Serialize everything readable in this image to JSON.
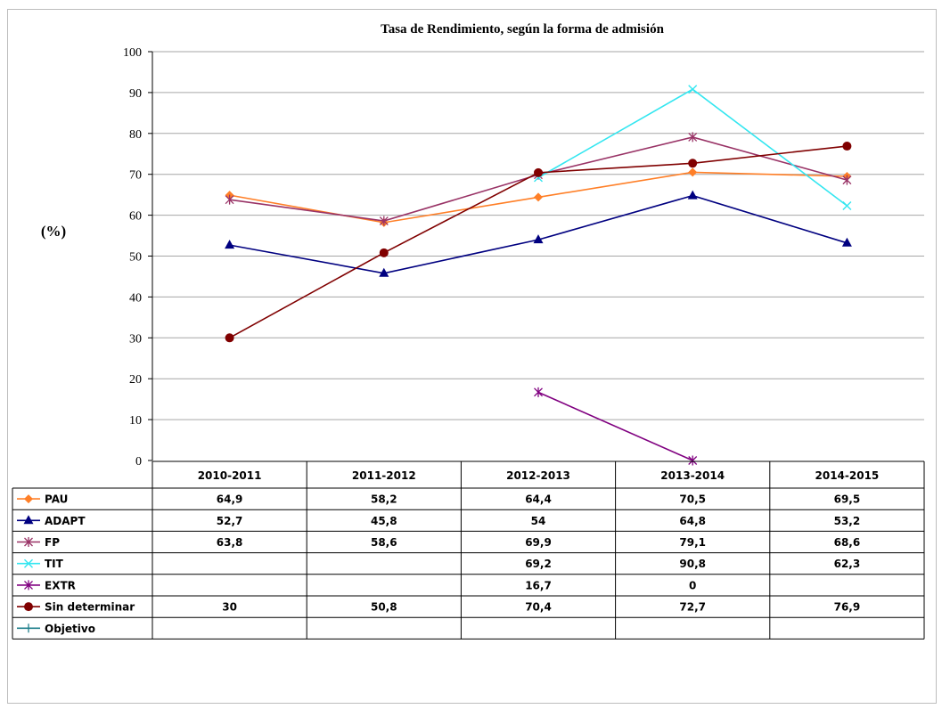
{
  "chart_data": {
    "type": "line",
    "title": "Tasa de Rendimiento, según la forma de admisión",
    "ylabel": "(%)",
    "xlabel": "",
    "ylim": [
      0,
      100
    ],
    "yticks": [
      0,
      10,
      20,
      30,
      40,
      50,
      60,
      70,
      80,
      90,
      100
    ],
    "ytick_labels": [
      "0",
      "10",
      "20",
      "30",
      "40",
      "50",
      "60",
      "70",
      "80",
      "90",
      "100"
    ],
    "grid": true,
    "legend": "data-table-below",
    "categories": [
      "2010-2011",
      "2011-2012",
      "2012-2013",
      "2013-2014",
      "2014-2015"
    ],
    "series": [
      {
        "name": "PAU",
        "color": "#ff7f27",
        "marker": "diamond",
        "values": [
          64.9,
          58.2,
          64.4,
          70.5,
          69.5
        ],
        "labels": [
          "64,9",
          "58,2",
          "64,4",
          "70,5",
          "69,5"
        ]
      },
      {
        "name": "ADAPT",
        "color": "#000080",
        "marker": "triangle",
        "values": [
          52.7,
          45.8,
          54,
          64.8,
          53.2
        ],
        "labels": [
          "52,7",
          "45,8",
          "54",
          "64,8",
          "53,2"
        ]
      },
      {
        "name": "FP",
        "color": "#993366",
        "marker": "star",
        "values": [
          63.8,
          58.6,
          69.9,
          79.1,
          68.6
        ],
        "labels": [
          "63,8",
          "58,6",
          "69,9",
          "79,1",
          "68,6"
        ]
      },
      {
        "name": "TIT",
        "color": "#33e6f0",
        "marker": "x",
        "values": [
          null,
          null,
          69.2,
          90.8,
          62.3
        ],
        "labels": [
          "",
          "",
          "69,2",
          "90,8",
          "62,3"
        ]
      },
      {
        "name": "EXTR",
        "color": "#800080",
        "marker": "star",
        "values": [
          null,
          null,
          16.7,
          0,
          null
        ],
        "labels": [
          "",
          "",
          "16,7",
          "0",
          ""
        ]
      },
      {
        "name": "Sin determinar",
        "color": "#800000",
        "marker": "circle",
        "values": [
          30,
          50.8,
          70.4,
          72.7,
          76.9
        ],
        "labels": [
          "30",
          "50,8",
          "70,4",
          "72,7",
          "76,9"
        ]
      },
      {
        "name": "Objetivo",
        "color": "#1f7f8c",
        "marker": "plus",
        "values": [
          null,
          null,
          null,
          null,
          null
        ],
        "labels": [
          "",
          "",
          "",
          "",
          ""
        ]
      }
    ]
  }
}
